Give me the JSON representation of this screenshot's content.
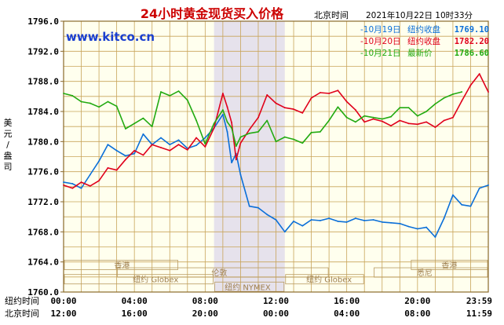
{
  "header": {
    "title": "24小时黄金现货买入价格",
    "timezone_label": "北京时间",
    "timestamp": "2021年10月22日 10时33分"
  },
  "watermark": "www.kitco.cn",
  "colors": {
    "title": "#cc0000",
    "watermark": "#1a3fd0",
    "grid": "#c8a45a",
    "frame": "#8a6a2a",
    "plot_bg": "#ffffee",
    "shade": "#e6e2ec",
    "axis_text": "#000000",
    "session_line": "#b89a60",
    "session_text": "#a08050"
  },
  "y_axis_label": [
    "美",
    "元",
    "/",
    "盎",
    "司"
  ],
  "x_rows": [
    {
      "label": "纽约时间",
      "ticks": [
        "00:00",
        "04:00",
        "08:00",
        "12:00",
        "16:00",
        "20:00",
        "23:59"
      ]
    },
    {
      "label": "北京时间",
      "ticks": [
        "12:00",
        "16:00",
        "20:00",
        "00:00",
        "04:00",
        "08:00",
        "11:59"
      ]
    }
  ],
  "sessions": [
    {
      "label": "香港"
    },
    {
      "label": "香港"
    },
    {
      "label": "纽约 Globex"
    },
    {
      "label": "伦敦"
    },
    {
      "label": "纽约 NYMEX"
    },
    {
      "label": "纽约 Globex"
    },
    {
      "label": "悉尼"
    }
  ],
  "chart_data": {
    "type": "line",
    "x_unit": "hours (New York time)",
    "xlim": [
      0,
      24
    ],
    "ylim": [
      1760,
      1796
    ],
    "y_ticks": [
      1760.0,
      1764.0,
      1768.0,
      1772.0,
      1776.0,
      1780.0,
      1784.0,
      1788.0,
      1792.0,
      1796.0
    ],
    "y_tick_labels": [
      "1760.0",
      "1764.0",
      "1768.0",
      "1772.0",
      "1776.0",
      "1780.0",
      "1784.0",
      "1788.0",
      "1792.0",
      "1796.0"
    ],
    "x_ticks": [
      0,
      4,
      8,
      12,
      16,
      20,
      23.98
    ],
    "grid": true,
    "shaded_range": [
      8.5,
      12.5
    ],
    "legend_position": "top-right",
    "series": [
      {
        "name": "10月19日",
        "legend_label": "-10月19日",
        "status_label": "纽约收盘",
        "value_label": "1769.10",
        "color": "#0b6fd8",
        "x": [
          0,
          0.5,
          1,
          1.5,
          2,
          2.5,
          3,
          3.5,
          4,
          4.5,
          5,
          5.5,
          6,
          6.5,
          7,
          7.5,
          8,
          8.5,
          9,
          9.25,
          9.5,
          9.75,
          10,
          10.5,
          11,
          11.5,
          12,
          12.5,
          13,
          13.5,
          14,
          14.5,
          15,
          15.5,
          16,
          16.5,
          17,
          17.5,
          18,
          18.5,
          19,
          19.5,
          20,
          20.5,
          21,
          21.5,
          22,
          22.5,
          23,
          23.5,
          24
        ],
        "y": [
          1774.6,
          1774.4,
          1773.8,
          1775.6,
          1777.4,
          1779.6,
          1778.8,
          1778.1,
          1778.4,
          1781.0,
          1779.6,
          1780.5,
          1779.6,
          1780.2,
          1779.1,
          1779.5,
          1780.5,
          1781.8,
          1783.6,
          1781.3,
          1777.2,
          1778.4,
          1775.6,
          1771.4,
          1771.2,
          1770.3,
          1769.6,
          1768.0,
          1769.4,
          1768.8,
          1769.6,
          1769.5,
          1769.8,
          1769.4,
          1769.3,
          1769.8,
          1769.5,
          1769.6,
          1769.3,
          1769.2,
          1769.1,
          1768.7,
          1768.4,
          1768.6,
          1767.3,
          1769.8,
          1772.9,
          1771.6,
          1771.4,
          1773.8,
          1774.2
        ]
      },
      {
        "name": "10月20日",
        "legend_label": "-10月20日",
        "status_label": "纽约收盘",
        "value_label": "1782.20",
        "color": "#e0001b",
        "x": [
          0,
          0.5,
          1,
          1.5,
          2,
          2.5,
          3,
          3.5,
          4,
          4.5,
          5,
          5.5,
          6,
          6.5,
          7,
          7.5,
          8,
          8.5,
          9,
          9.25,
          9.5,
          9.75,
          10,
          10.5,
          11,
          11.5,
          12,
          12.5,
          13,
          13.5,
          14,
          14.5,
          15,
          15.5,
          16,
          16.5,
          17,
          17.5,
          18,
          18.5,
          19,
          19.5,
          20,
          20.5,
          21,
          21.5,
          22,
          22.5,
          23,
          23.5,
          24
        ],
        "y": [
          1774.2,
          1773.8,
          1774.6,
          1774.1,
          1774.8,
          1776.5,
          1776.2,
          1777.6,
          1778.8,
          1778.2,
          1779.6,
          1779.2,
          1778.8,
          1779.6,
          1778.9,
          1780.5,
          1779.3,
          1781.8,
          1786.4,
          1784.6,
          1782.5,
          1777.6,
          1779.8,
          1781.6,
          1783.2,
          1786.2,
          1785.1,
          1784.5,
          1784.3,
          1783.8,
          1785.8,
          1786.5,
          1786.4,
          1786.8,
          1785.3,
          1784.2,
          1782.6,
          1783.0,
          1782.7,
          1782.1,
          1782.8,
          1782.4,
          1782.3,
          1782.6,
          1781.9,
          1782.8,
          1783.2,
          1785.4,
          1787.5,
          1789.0,
          1786.6
        ]
      },
      {
        "name": "10月21日",
        "legend_label": "-10月21日",
        "status_label": "最新价",
        "value_label": "1786.60",
        "color": "#22aa11",
        "x": [
          0,
          0.5,
          1,
          1.5,
          2,
          2.5,
          3,
          3.5,
          4,
          4.5,
          5,
          5.5,
          6,
          6.5,
          7,
          7.5,
          8,
          8.5,
          9,
          9.25,
          9.5,
          9.75,
          10,
          10.5,
          11,
          11.5,
          12,
          12.5,
          13,
          13.5,
          14,
          14.5,
          15,
          15.5,
          16,
          16.5,
          17,
          17.5,
          18,
          18.5,
          19,
          19.5,
          20,
          20.5,
          21,
          21.5,
          22,
          22.5
        ],
        "y": [
          1786.4,
          1786.1,
          1785.3,
          1785.1,
          1784.6,
          1785.3,
          1784.7,
          1781.7,
          1782.4,
          1783.1,
          1782.0,
          1786.6,
          1786.1,
          1786.7,
          1785.5,
          1782.8,
          1779.7,
          1782.4,
          1784.2,
          1782.6,
          1781.8,
          1779.4,
          1780.6,
          1781.1,
          1781.3,
          1782.8,
          1780.0,
          1780.6,
          1780.3,
          1779.8,
          1781.2,
          1781.3,
          1782.8,
          1784.6,
          1783.2,
          1782.6,
          1783.4,
          1783.2,
          1783.0,
          1783.3,
          1784.5,
          1784.5,
          1783.4,
          1784.0,
          1785.0,
          1785.8,
          1786.3,
          1786.6
        ]
      }
    ]
  }
}
